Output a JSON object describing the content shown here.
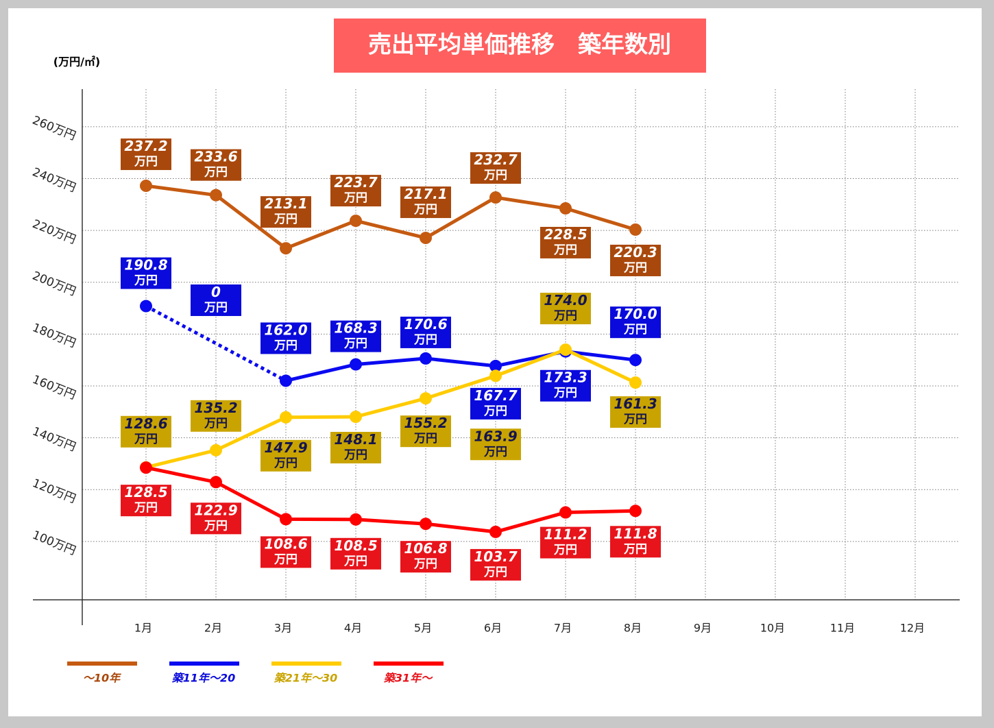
{
  "chart_data": {
    "type": "line",
    "title": "売出平均単価推移　築年数別",
    "y_axis_label": "(万円/㎡)",
    "categories": [
      "1月",
      "2月",
      "3月",
      "4月",
      "5月",
      "6月",
      "7月",
      "8月",
      "9月",
      "10月",
      "11月",
      "12月"
    ],
    "ylim": [
      77.5,
      274.5
    ],
    "yticks": [
      {
        "value": 100,
        "label": "100万円"
      },
      {
        "value": 120,
        "label": "120万円"
      },
      {
        "value": 140,
        "label": "140万円"
      },
      {
        "value": 160,
        "label": "160万円"
      },
      {
        "value": 180,
        "label": "180万円"
      },
      {
        "value": 200,
        "label": "200万円"
      },
      {
        "value": 220,
        "label": "220万円"
      },
      {
        "value": 240,
        "label": "240万円"
      },
      {
        "value": 260,
        "label": "260万円"
      }
    ],
    "grid": true,
    "legend": "bottom-left",
    "series": [
      {
        "name": "～10年",
        "color": "#c55a11",
        "label_color": "#a9480c",
        "label_text": "#ffffff",
        "values": [
          237.2,
          233.6,
          213.1,
          223.7,
          217.1,
          232.7,
          228.5,
          220.3,
          null,
          null,
          null,
          null
        ],
        "value_labels": [
          "237.2万円",
          "233.6万円",
          "213.1万円",
          "223.7万円",
          "217.1万円",
          "232.7万円",
          "228.5万円",
          "220.3万円",
          null,
          null,
          null,
          null
        ]
      },
      {
        "name": "築11年～20",
        "color": "#0a0af0",
        "label_color": "#0a0adc",
        "label_text": "#ffffff",
        "gap_line": "dotted",
        "values": [
          190.8,
          null,
          162.0,
          168.3,
          170.6,
          167.7,
          173.3,
          170.0,
          null,
          null,
          null,
          null
        ],
        "value_labels": [
          "190.8万円",
          "0万円",
          "162.0万円",
          "168.3万円",
          "170.6万円",
          "167.7万円",
          "173.3万円",
          "170.0万円",
          null,
          null,
          null,
          null
        ]
      },
      {
        "name": "築21年～30",
        "color": "#ffcc00",
        "label_color": "#c9a400",
        "label_text": "#141450",
        "values": [
          128.6,
          135.2,
          147.9,
          148.1,
          155.2,
          163.9,
          174.0,
          161.3,
          null,
          null,
          null,
          null
        ],
        "value_labels": [
          "128.6万円",
          "135.2万円",
          "147.9万円",
          "148.1万円",
          "155.2万円",
          "163.9万円",
          "174.0万円",
          "161.3万円",
          null,
          null,
          null,
          null
        ]
      },
      {
        "name": "築31年～",
        "color": "#ff0000",
        "label_color": "#e8141b",
        "label_text": "#ffffff",
        "values": [
          128.5,
          122.9,
          108.6,
          108.5,
          106.8,
          103.7,
          111.2,
          111.8,
          null,
          null,
          null,
          null
        ],
        "value_labels": [
          "128.5万円",
          "122.9万円",
          "108.6万円",
          "108.5万円",
          "106.8万円",
          "103.7万円",
          "111.2万円",
          "111.8万円",
          null,
          null,
          null,
          null
        ]
      }
    ]
  }
}
